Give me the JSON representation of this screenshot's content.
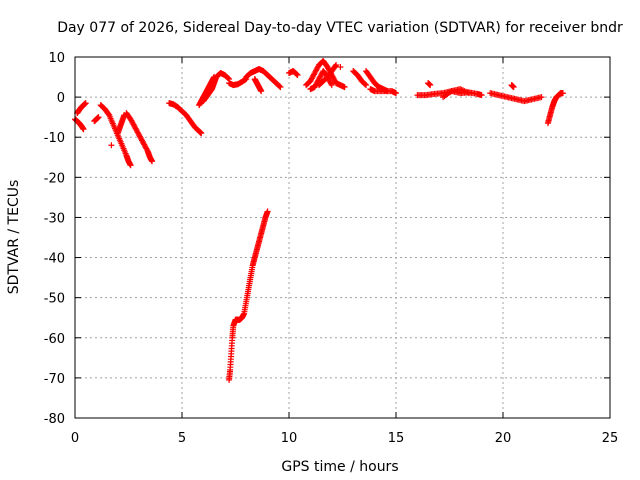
{
  "chart_data": {
    "type": "scatter",
    "title": "Day 077 of 2026, Sidereal Day-to-day VTEC variation (SDTVAR) for receiver bndr",
    "xlabel": "GPS time / hours",
    "ylabel": "SDTVAR / TECUs",
    "xlim": [
      0,
      25
    ],
    "ylim": [
      -80,
      10
    ],
    "xticks": [
      0,
      5,
      10,
      15,
      20,
      25
    ],
    "yticks": [
      10,
      0,
      -10,
      -20,
      -30,
      -40,
      -50,
      -60,
      -70,
      -80
    ],
    "grid": true,
    "marker": "plus",
    "color": "#ff0000",
    "segments": [
      {
        "x": [
          0.0,
          0.1,
          0.2,
          0.3,
          0.4
        ],
        "y": [
          -5.5,
          -6.0,
          -6.5,
          -7.2,
          -8.0
        ]
      },
      {
        "x": [
          0.1,
          0.2,
          0.3,
          0.4,
          0.5
        ],
        "y": [
          -4.0,
          -3.2,
          -2.5,
          -2.0,
          -1.5
        ]
      },
      {
        "x": [
          0.9,
          1.0,
          1.1
        ],
        "y": [
          -6.0,
          -5.5,
          -5.0
        ]
      },
      {
        "x": [
          1.2,
          1.4,
          1.6,
          1.8,
          2.0,
          2.2,
          2.4,
          2.5,
          2.6
        ],
        "y": [
          -2.0,
          -3.0,
          -4.5,
          -7.0,
          -9.5,
          -12.0,
          -14.5,
          -16.0,
          -17.0
        ]
      },
      {
        "x": [
          1.7
        ],
        "y": [
          -12.0
        ]
      },
      {
        "x": [
          2.0,
          2.1,
          2.2,
          2.3
        ],
        "y": [
          -9.0,
          -7.5,
          -6.0,
          -4.5
        ]
      },
      {
        "x": [
          2.4,
          2.6,
          2.8,
          3.0,
          3.2,
          3.4,
          3.5,
          3.6
        ],
        "y": [
          -4.0,
          -5.5,
          -7.5,
          -9.5,
          -11.5,
          -13.5,
          -15.0,
          -16.0
        ]
      },
      {
        "x": [
          4.4,
          4.6,
          4.8,
          5.0,
          5.2,
          5.4,
          5.6,
          5.8,
          5.9
        ],
        "y": [
          -1.5,
          -1.8,
          -2.5,
          -3.5,
          -4.5,
          -6.0,
          -7.5,
          -8.5,
          -9.0
        ]
      },
      {
        "x": [
          5.8,
          5.9,
          6.0,
          6.1,
          6.2,
          6.3,
          6.4,
          6.5
        ],
        "y": [
          -2.0,
          -1.0,
          0.0,
          1.0,
          2.0,
          3.0,
          4.0,
          5.0
        ]
      },
      {
        "x": [
          6.0,
          6.2,
          6.4,
          6.5,
          6.6,
          6.8,
          7.0,
          7.2
        ],
        "y": [
          -1.0,
          0.5,
          2.0,
          3.5,
          5.0,
          6.0,
          5.5,
          4.5
        ]
      },
      {
        "x": [
          7.2,
          7.4,
          7.6,
          7.8,
          8.0
        ],
        "y": [
          3.5,
          3.0,
          3.2,
          3.8,
          4.5
        ]
      },
      {
        "x": [
          8.0,
          8.2,
          8.4,
          8.6,
          8.8,
          9.0,
          9.2,
          9.4,
          9.6
        ],
        "y": [
          5.0,
          6.0,
          6.5,
          7.0,
          6.5,
          5.5,
          4.5,
          3.5,
          2.5
        ]
      },
      {
        "x": [
          8.4,
          8.5,
          8.6,
          8.7
        ],
        "y": [
          4.5,
          3.5,
          2.5,
          1.5
        ]
      },
      {
        "x": [
          7.2,
          7.25,
          7.3,
          7.35,
          7.4,
          7.5,
          7.6,
          7.7,
          7.8,
          7.9,
          8.0,
          8.1,
          8.2,
          8.3,
          8.4,
          8.5,
          8.6,
          8.7,
          8.8,
          8.9,
          9.0
        ],
        "y": [
          -70.5,
          -68.0,
          -64.0,
          -60.0,
          -57.0,
          -55.5,
          -55.5,
          -55.5,
          -55.0,
          -54.0,
          -51.0,
          -48.0,
          -45.0,
          -42.0,
          -40.0,
          -38.0,
          -36.0,
          -34.0,
          -32.0,
          -30.0,
          -28.5
        ]
      },
      {
        "x": [
          10.0,
          10.2,
          10.4
        ],
        "y": [
          6.0,
          6.5,
          5.5
        ]
      },
      {
        "x": [
          10.8,
          11.0,
          11.2,
          11.4,
          11.6,
          11.8,
          12.0,
          12.2
        ],
        "y": [
          3.0,
          4.0,
          6.0,
          8.0,
          9.0,
          7.5,
          5.5,
          3.5
        ]
      },
      {
        "x": [
          11.0,
          11.2,
          11.4,
          11.6,
          11.8,
          12.0
        ],
        "y": [
          2.0,
          2.5,
          4.5,
          6.5,
          5.0,
          3.0
        ]
      },
      {
        "x": [
          11.4,
          11.6,
          11.8,
          12.0,
          12.2
        ],
        "y": [
          3.0,
          4.0,
          5.0,
          6.5,
          8.0
        ]
      },
      {
        "x": [
          12.2,
          12.4,
          12.6
        ],
        "y": [
          3.5,
          3.0,
          2.5
        ]
      },
      {
        "x": [
          12.4
        ],
        "y": [
          7.5
        ]
      },
      {
        "x": [
          13.0,
          13.2,
          13.4,
          13.6
        ],
        "y": [
          6.5,
          5.5,
          4.0,
          3.0
        ]
      },
      {
        "x": [
          13.6,
          13.8,
          14.0,
          14.2,
          14.4,
          14.6
        ],
        "y": [
          6.5,
          5.0,
          3.5,
          2.5,
          2.0,
          1.5
        ]
      },
      {
        "x": [
          13.8,
          14.0,
          14.4,
          14.8,
          15.0
        ],
        "y": [
          2.0,
          1.5,
          1.5,
          1.5,
          1.0
        ]
      },
      {
        "x": [
          16.0,
          16.4,
          16.8,
          17.2,
          17.6,
          18.0,
          18.4,
          18.8,
          19.0
        ],
        "y": [
          0.5,
          0.5,
          0.8,
          1.0,
          1.5,
          1.0,
          1.2,
          0.8,
          0.5
        ]
      },
      {
        "x": [
          16.5,
          16.6
        ],
        "y": [
          3.5,
          3.0
        ]
      },
      {
        "x": [
          17.2,
          17.6,
          18.0,
          18.4
        ],
        "y": [
          0.0,
          1.5,
          2.0,
          1.0
        ]
      },
      {
        "x": [
          19.4,
          19.8,
          20.2,
          20.6,
          21.0,
          21.4,
          21.8
        ],
        "y": [
          1.0,
          0.5,
          0.0,
          -0.5,
          -1.0,
          -0.5,
          0.0
        ]
      },
      {
        "x": [
          20.4,
          20.5
        ],
        "y": [
          3.0,
          2.5
        ]
      },
      {
        "x": [
          22.1,
          22.2,
          22.3,
          22.4,
          22.5,
          22.6,
          22.7,
          22.8
        ],
        "y": [
          -6.5,
          -4.5,
          -2.5,
          -1.0,
          0.0,
          0.5,
          1.0,
          1.0
        ]
      }
    ]
  }
}
